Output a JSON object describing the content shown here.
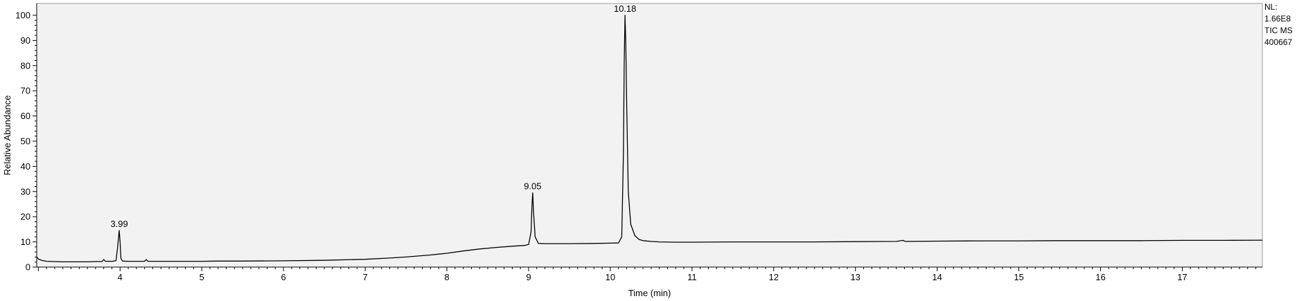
{
  "chart_data": {
    "type": "line",
    "title": "",
    "xlabel": "Time (min)",
    "ylabel": "Relative Abundance",
    "xlim": [
      2.98,
      17.98
    ],
    "ylim": [
      0,
      100
    ],
    "x_ticks": [
      4,
      5,
      6,
      7,
      8,
      9,
      10,
      11,
      12,
      13,
      14,
      15,
      16,
      17
    ],
    "y_ticks": [
      0,
      10,
      20,
      30,
      40,
      50,
      60,
      70,
      80,
      90,
      100
    ],
    "grid": false,
    "plot_background": "#f2f2f2",
    "line_color": "#000000",
    "peak_labels": [
      {
        "x": 3.99,
        "y": 14.5,
        "label": "3.99"
      },
      {
        "x": 9.05,
        "y": 29.5,
        "label": "9.05"
      },
      {
        "x": 10.18,
        "y": 100,
        "label": "10.18"
      }
    ],
    "side_notes": [
      "NL:",
      "1.66E8",
      "TIC  MS",
      "400667"
    ],
    "series": [
      {
        "x": [
          2.98,
          3.0,
          3.05,
          3.1,
          3.2,
          3.3,
          3.4,
          3.5,
          3.6,
          3.7,
          3.78,
          3.8,
          3.82,
          3.9,
          3.95,
          3.97,
          3.985,
          3.99,
          4.0,
          4.01,
          4.03,
          4.1,
          4.2,
          4.3,
          4.32,
          4.34,
          4.5,
          4.8,
          5.0,
          5.2,
          5.5,
          6.0,
          6.5,
          7.0,
          7.3,
          7.5,
          7.8,
          8.0,
          8.2,
          8.4,
          8.6,
          8.8,
          8.95,
          9.0,
          9.03,
          9.04,
          9.05,
          9.06,
          9.08,
          9.12,
          9.2,
          9.5,
          9.8,
          10.0,
          10.1,
          10.14,
          10.16,
          10.17,
          10.18,
          10.19,
          10.2,
          10.22,
          10.25,
          10.3,
          10.35,
          10.4,
          10.5,
          10.6,
          10.8,
          11.0,
          11.5,
          12.0,
          12.5,
          13.0,
          13.5,
          13.58,
          13.6,
          13.62,
          14.0,
          14.5,
          15.0,
          15.5,
          16.0,
          16.5,
          17.0,
          17.5,
          17.98
        ],
        "y": [
          4.0,
          3.2,
          2.6,
          2.3,
          2.2,
          2.1,
          2.1,
          2.1,
          2.1,
          2.2,
          2.2,
          3.0,
          2.3,
          2.3,
          2.5,
          8.0,
          13.0,
          14.5,
          10.0,
          3.5,
          2.4,
          2.3,
          2.3,
          2.3,
          3.0,
          2.3,
          2.3,
          2.3,
          2.3,
          2.4,
          2.4,
          2.5,
          2.7,
          3.1,
          3.6,
          4.0,
          4.8,
          5.5,
          6.4,
          7.2,
          7.8,
          8.3,
          8.6,
          9.0,
          14.0,
          24.0,
          29.5,
          22.0,
          12.0,
          9.4,
          9.3,
          9.3,
          9.4,
          9.5,
          9.6,
          12.0,
          45.0,
          80.0,
          100.0,
          88.0,
          65.0,
          30.0,
          17.0,
          12.5,
          11.0,
          10.5,
          10.2,
          10.0,
          9.9,
          9.9,
          10.0,
          10.0,
          10.0,
          10.1,
          10.2,
          10.6,
          10.3,
          10.2,
          10.3,
          10.4,
          10.4,
          10.5,
          10.5,
          10.5,
          10.6,
          10.6,
          10.7
        ]
      }
    ]
  }
}
